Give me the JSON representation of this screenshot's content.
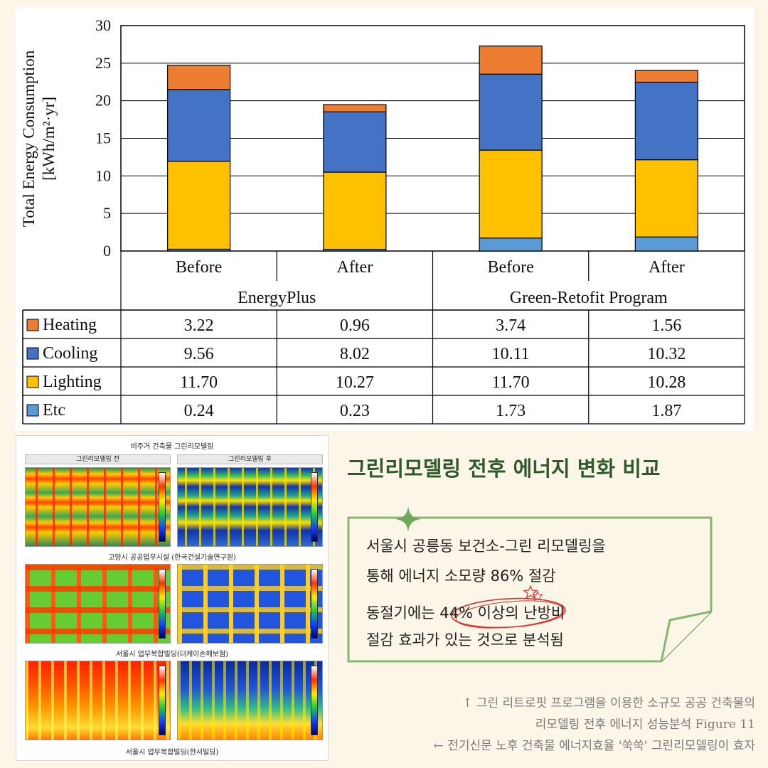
{
  "chart_data": {
    "type": "bar",
    "stacked": true,
    "ylabel_line1": "Total Energy Consumption",
    "ylabel_line2": "[kWh/m²·yr]",
    "ylim": [
      0,
      30
    ],
    "yticks": [
      0,
      5,
      10,
      15,
      20,
      25,
      30
    ],
    "grid": true,
    "categories": [
      "Before",
      "After",
      "Before",
      "After"
    ],
    "groups": [
      {
        "name": "EnergyPlus",
        "span": 2
      },
      {
        "name": "Green-Retofit Program",
        "span": 2
      }
    ],
    "series": [
      {
        "name": "Etc",
        "color": "#5b9bd5",
        "values": [
          0.24,
          0.23,
          1.73,
          1.87
        ],
        "labels": [
          "0.24",
          "0.23",
          "1.73",
          "1.87"
        ]
      },
      {
        "name": "Lighting",
        "color": "#ffc000",
        "values": [
          11.7,
          10.27,
          11.7,
          10.28
        ],
        "labels": [
          "11.70",
          "10.27",
          "11.70",
          "10.28"
        ]
      },
      {
        "name": "Cooling",
        "color": "#4472c4",
        "values": [
          9.56,
          8.02,
          10.11,
          10.32
        ],
        "labels": [
          "9.56",
          "8.02",
          "10.11",
          "10.32"
        ]
      },
      {
        "name": "Heating",
        "color": "#ed7d31",
        "values": [
          3.22,
          0.96,
          3.74,
          1.56
        ],
        "labels": [
          "3.22",
          "0.96",
          "3.74",
          "1.56"
        ]
      }
    ],
    "table_order": [
      "Heating",
      "Cooling",
      "Lighting",
      "Etc"
    ]
  },
  "thermal_panel": {
    "title": "비주거 건축물 그린리모델링",
    "col_before": "그린리모델링 전",
    "col_after": "그린리모델링 후",
    "caption_1": "고양시 공공업무시설 (한국건설기술연구원)",
    "caption_2": "서울시 업무복합빌딩(더케이손해보험)",
    "caption_3": "서울시 업무복합빌딩(한서빌딩)"
  },
  "headline": "그린리모델링 전후 에너지 변화 비교",
  "note": {
    "line1": "서울시 공릉동 보건소-그린 리모델링을",
    "line2": "통해 에너지 소모량 86% 절감",
    "line3_pre": "동절기에는 ",
    "line3_highlight": "44% 이상",
    "line3_post": "의 난방비",
    "line4": "절감 효과가 있는 것으로 분석됨",
    "accent_color": "#6faa5a",
    "highlight_color": "#e0302a"
  },
  "caption": {
    "line1": "↑ 그린 리트로핏 프로그램을 이용한 소규모 공공 건축물의",
    "line2": "리모델링 전후 에너지 성능분석 Figure 11",
    "line3": "← 전기신문 노후 건축물 에너지효율 '쑥쑥' 그린리모델링이 효자"
  }
}
